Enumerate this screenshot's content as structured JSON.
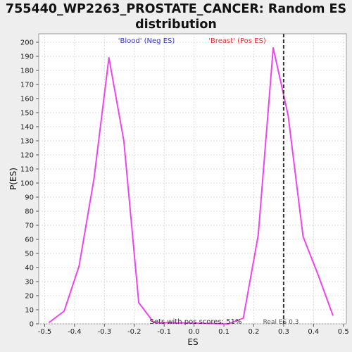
{
  "chart_data": {
    "type": "line",
    "title": "755440_WP2263_PROSTATE_CANCER: Random ES distribution",
    "title_lines": [
      "755440_WP2263_PROSTATE_CANCER: Random ES",
      "distribution"
    ],
    "xlabel": "ES",
    "ylabel": "P(ES)",
    "xlim": [
      -0.52,
      0.51
    ],
    "ylim": [
      0,
      206
    ],
    "xticks": [
      -0.5,
      -0.4,
      -0.3,
      -0.2,
      -0.1,
      0.0,
      0.1,
      0.2,
      0.3,
      0.4,
      0.5
    ],
    "xtick_labels": [
      "-0.5",
      "-0.4",
      "-0.3",
      "-0.2",
      "-0.1",
      "0.0",
      "0.1",
      "0.2",
      "0.3",
      "0.4",
      "0.5"
    ],
    "yticks": [
      0,
      10,
      20,
      30,
      40,
      50,
      60,
      70,
      80,
      90,
      100,
      110,
      120,
      130,
      140,
      150,
      160,
      170,
      180,
      190,
      200
    ],
    "grid": true,
    "series": [
      {
        "color": "#ee44ee",
        "points": [
          {
            "x": -0.485,
            "y": 1
          },
          {
            "x": -0.435,
            "y": 9
          },
          {
            "x": -0.385,
            "y": 41
          },
          {
            "x": -0.335,
            "y": 103
          },
          {
            "x": -0.285,
            "y": 189
          },
          {
            "x": -0.235,
            "y": 130
          },
          {
            "x": -0.185,
            "y": 15
          },
          {
            "x": -0.135,
            "y": 1
          },
          {
            "x": 0.115,
            "y": 0
          },
          {
            "x": 0.165,
            "y": 4
          },
          {
            "x": 0.215,
            "y": 63
          },
          {
            "x": 0.265,
            "y": 196
          },
          {
            "x": 0.315,
            "y": 148
          },
          {
            "x": 0.365,
            "y": 62
          },
          {
            "x": 0.415,
            "y": 35
          },
          {
            "x": 0.465,
            "y": 6
          }
        ]
      }
    ],
    "real_es": 0.3,
    "annotations": {
      "neg_label": "'Blood' (Neg ES)",
      "pos_label": "'Breast' (Pos ES)",
      "pos_scores": "Sets with pos scores: 51%",
      "real_es_label": "Real ES 0.3"
    },
    "colors": {
      "neg": "#3333cc",
      "pos": "#dd3333"
    }
  }
}
